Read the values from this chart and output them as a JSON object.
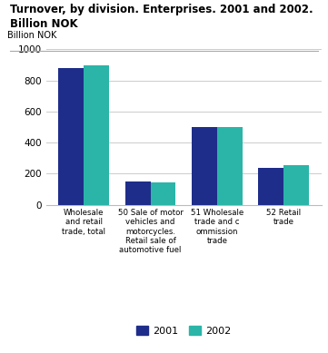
{
  "title": "Turnover, by division. Enterprises. 2001 and 2002.\nBillion NOK",
  "ylabel": "Billion NOK",
  "categories": [
    "Wholesale\nand retail\ntrade, total",
    "50 Sale of motor\nvehicles and\nmotorcycles.\nRetail sale of\nautomotive fuel",
    "51 Wholesale\ntrade and c\nommission\ntrade",
    "52 Retail\ntrade"
  ],
  "values_2001": [
    880,
    148,
    500,
    235
  ],
  "values_2002": [
    895,
    143,
    503,
    252
  ],
  "color_2001": "#1f2d8a",
  "color_2002": "#2ab5a8",
  "ylim": [
    0,
    1000
  ],
  "yticks": [
    0,
    200,
    400,
    600,
    800,
    1000
  ],
  "legend_labels": [
    "2001",
    "2002"
  ],
  "bar_width": 0.38,
  "background_color": "#ffffff",
  "grid_color": "#cccccc"
}
